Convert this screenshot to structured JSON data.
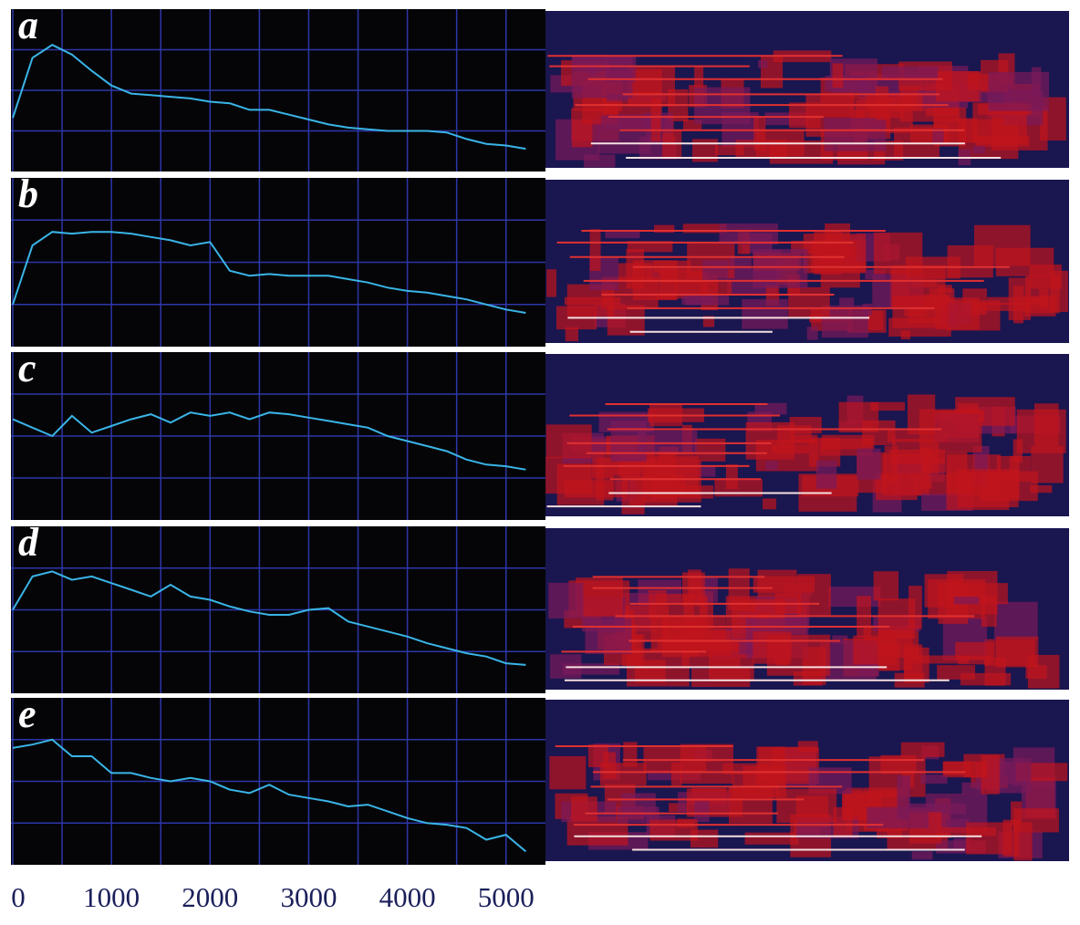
{
  "chart_data": [
    {
      "type": "line",
      "label": "a",
      "color": "#3ab4e6",
      "x": [
        0,
        200,
        400,
        600,
        800,
        1000,
        1200,
        1400,
        1600,
        1800,
        2000,
        2200,
        2400,
        2600,
        2800,
        3000,
        3200,
        3400,
        3600,
        3800,
        4000,
        4200,
        4400,
        4600,
        4800,
        5000,
        5200
      ],
      "values": [
        33,
        70,
        78,
        72,
        62,
        53,
        48,
        47,
        46,
        45,
        43,
        42,
        38,
        38,
        35,
        32,
        29,
        27,
        26,
        25,
        25,
        25,
        24,
        20,
        17,
        16,
        14
      ]
    },
    {
      "type": "line",
      "label": "b",
      "color": "#3ab4e6",
      "x": [
        0,
        200,
        400,
        600,
        800,
        1000,
        1200,
        1400,
        1600,
        1800,
        2000,
        2200,
        2400,
        2600,
        2800,
        3000,
        3200,
        3400,
        3600,
        3800,
        4000,
        4200,
        4400,
        4600,
        4800,
        5000,
        5200
      ],
      "values": [
        25,
        60,
        68,
        67,
        68,
        68,
        67,
        65,
        63,
        60,
        62,
        45,
        42,
        43,
        42,
        42,
        42,
        40,
        38,
        35,
        33,
        32,
        30,
        28,
        25,
        22,
        20
      ]
    },
    {
      "type": "line",
      "label": "c",
      "color": "#3ab4e6",
      "x": [
        0,
        200,
        400,
        600,
        800,
        1000,
        1200,
        1400,
        1600,
        1800,
        2000,
        2200,
        2400,
        2600,
        2800,
        3000,
        3200,
        3400,
        3600,
        3800,
        4000,
        4200,
        4400,
        4600,
        4800,
        5000,
        5200
      ],
      "values": [
        60,
        55,
        50,
        62,
        52,
        56,
        60,
        63,
        58,
        64,
        62,
        64,
        60,
        64,
        63,
        61,
        59,
        57,
        55,
        50,
        47,
        44,
        41,
        36,
        33,
        32,
        30
      ]
    },
    {
      "type": "line",
      "label": "d",
      "color": "#3ab4e6",
      "x": [
        0,
        200,
        400,
        600,
        800,
        1000,
        1200,
        1400,
        1600,
        1800,
        2000,
        2200,
        2400,
        2600,
        2800,
        3000,
        3200,
        3400,
        3600,
        3800,
        4000,
        4200,
        4400,
        4600,
        4800,
        5000,
        5200
      ],
      "values": [
        50,
        70,
        73,
        68,
        70,
        66,
        62,
        58,
        65,
        58,
        56,
        52,
        49,
        47,
        47,
        50,
        51,
        43,
        40,
        37,
        34,
        30,
        27,
        24,
        22,
        18,
        17
      ]
    },
    {
      "type": "line",
      "label": "e",
      "color": "#3ab4e6",
      "x": [
        0,
        200,
        400,
        600,
        800,
        1000,
        1200,
        1400,
        1600,
        1800,
        2000,
        2200,
        2400,
        2600,
        2800,
        3000,
        3200,
        3400,
        3600,
        3800,
        4000,
        4200,
        4400,
        4600,
        4800,
        5000,
        5200
      ],
      "values": [
        70,
        72,
        75,
        65,
        65,
        55,
        55,
        52,
        50,
        52,
        50,
        45,
        43,
        48,
        42,
        40,
        38,
        35,
        36,
        32,
        28,
        25,
        24,
        22,
        15,
        18,
        8
      ],
      "xlim": [
        0,
        5400
      ],
      "ylim": [
        0,
        100
      ],
      "xticks": [
        0,
        1000,
        2000,
        3000,
        4000,
        5000
      ],
      "xminorticks": [
        500,
        1500,
        2500,
        3500,
        4500
      ],
      "grid": true
    }
  ]
}
